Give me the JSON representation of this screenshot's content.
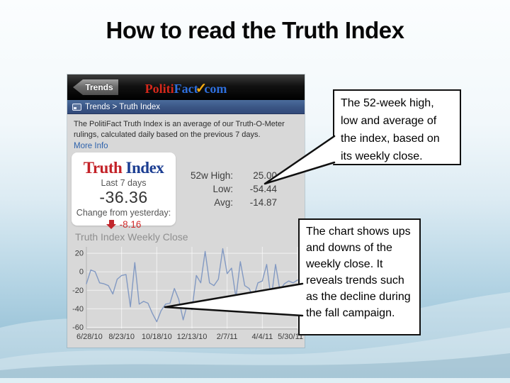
{
  "slide": {
    "title": "How to read the Truth Index"
  },
  "app": {
    "header": {
      "back_button": "Trends",
      "logo": {
        "part1": "Politi",
        "part2": "Fact",
        "check_icon": "✓",
        "part3": "com"
      }
    },
    "breadcrumb": "Trends > Truth Index",
    "description": "The PolitiFact Truth Index is an average of our Truth-O-Meter rulings, calculated daily based on the previous 7 days.",
    "more_info": "More Info",
    "summary_card": {
      "logo_part1": "Truth",
      "logo_part2": "Index",
      "period_label": "Last 7 days",
      "value": "-36.36",
      "change_label": "Change from yesterday:",
      "change_value": "-8.16"
    },
    "stats": {
      "rows": [
        {
          "label": "52w High:",
          "value": "25.00"
        },
        {
          "label": "Low:",
          "value": "-54.44"
        },
        {
          "label": "Avg:",
          "value": "-14.87"
        }
      ]
    },
    "chart_title": "Truth Index Weekly Close"
  },
  "callouts": [
    {
      "text": "The 52-week high, low and average of the index, based on its weekly close."
    },
    {
      "text": "The chart shows ups and downs of the weekly close. It reveals trends such as the decline during the fall campaign."
    }
  ],
  "chart_data": {
    "type": "line",
    "title": "Truth Index Weekly Close",
    "x_tick_labels": [
      "6/28/10",
      "8/23/10",
      "10/18/10",
      "12/13/10",
      "2/7/11",
      "4/4/11",
      "5/30/11"
    ],
    "y_ticks": [
      20,
      0,
      -20,
      -40,
      -60
    ],
    "ylim": [
      -62,
      27
    ],
    "values": [
      -13,
      2,
      0,
      -12,
      -13,
      -15,
      -24,
      -8,
      -4,
      -3,
      -38,
      10,
      -35,
      -32,
      -34,
      -45,
      -54,
      -42,
      -35,
      -34,
      -18,
      -30,
      -52,
      -34,
      -41,
      -4,
      -12,
      22,
      -12,
      -15,
      -8,
      25,
      -2,
      4,
      -28,
      11,
      -15,
      -18,
      -28,
      -12,
      -10,
      8,
      -30,
      8,
      -20,
      -13,
      -10,
      -12,
      -9
    ],
    "line_color": "#8299c2",
    "grid_color": "rgba(255,255,255,0.65)",
    "axis_color": "#b2b2b2",
    "tick_label_color": "#3c3c3c",
    "grid": true,
    "legend": false
  }
}
